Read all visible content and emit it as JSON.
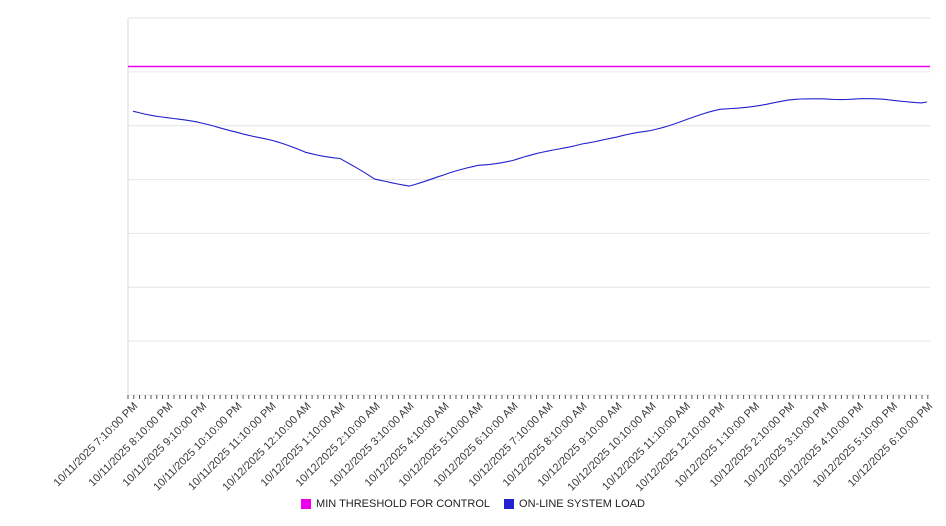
{
  "chart_data": {
    "type": "line",
    "title": "",
    "xlabel": "",
    "ylabel": "",
    "ylim": [
      0,
      7
    ],
    "grid": true,
    "y_axis_labels_visible": false,
    "legend_position": "bottom",
    "x": [
      "10/11/2025 7:10:00 PM",
      "10/11/2025 8:10:00 PM",
      "10/11/2025 9:10:00 PM",
      "10/11/2025 10:10:00 PM",
      "10/11/2025 11:10:00 PM",
      "10/12/2025 12:10:00 AM",
      "10/12/2025 1:10:00 AM",
      "10/12/2025 2:10:00 AM",
      "10/12/2025 3:10:00 AM",
      "10/12/2025 4:10:00 AM",
      "10/12/2025 5:10:00 AM",
      "10/12/2025 6:10:00 AM",
      "10/12/2025 7:10:00 AM",
      "10/12/2025 8:10:00 AM",
      "10/12/2025 9:10:00 AM",
      "10/12/2025 10:10:00 AM",
      "10/12/2025 11:10:00 AM",
      "10/12/2025 12:10:00 PM",
      "10/12/2025 1:10:00 PM",
      "10/12/2025 2:10:00 PM",
      "10/12/2025 3:10:00 PM",
      "10/12/2025 4:10:00 PM",
      "10/12/2025 5:10:00 PM",
      "10/12/2025 6:10:00 PM"
    ],
    "series": [
      {
        "name": "MIN THRESHOLD FOR CONTROL",
        "type": "constant",
        "value": 6.1,
        "color": "#ee00ee"
      },
      {
        "name": "ON-LINE SYSTEM LOAD",
        "type": "line",
        "color": "#2222cc",
        "values": [
          5.27,
          5.16,
          5.03,
          4.9,
          4.72,
          4.51,
          4.4,
          3.99,
          3.9,
          4.07,
          4.27,
          4.36,
          4.51,
          4.68,
          4.77,
          4.92,
          5.11,
          5.29,
          5.38,
          5.46,
          5.51,
          5.5,
          5.46,
          5.44
        ]
      }
    ]
  },
  "legend": {
    "items": [
      {
        "label": "MIN THRESHOLD FOR CONTROL",
        "color": "#ee00ee"
      },
      {
        "label": "ON-LINE SYSTEM LOAD",
        "color": "#2222cc"
      }
    ]
  }
}
